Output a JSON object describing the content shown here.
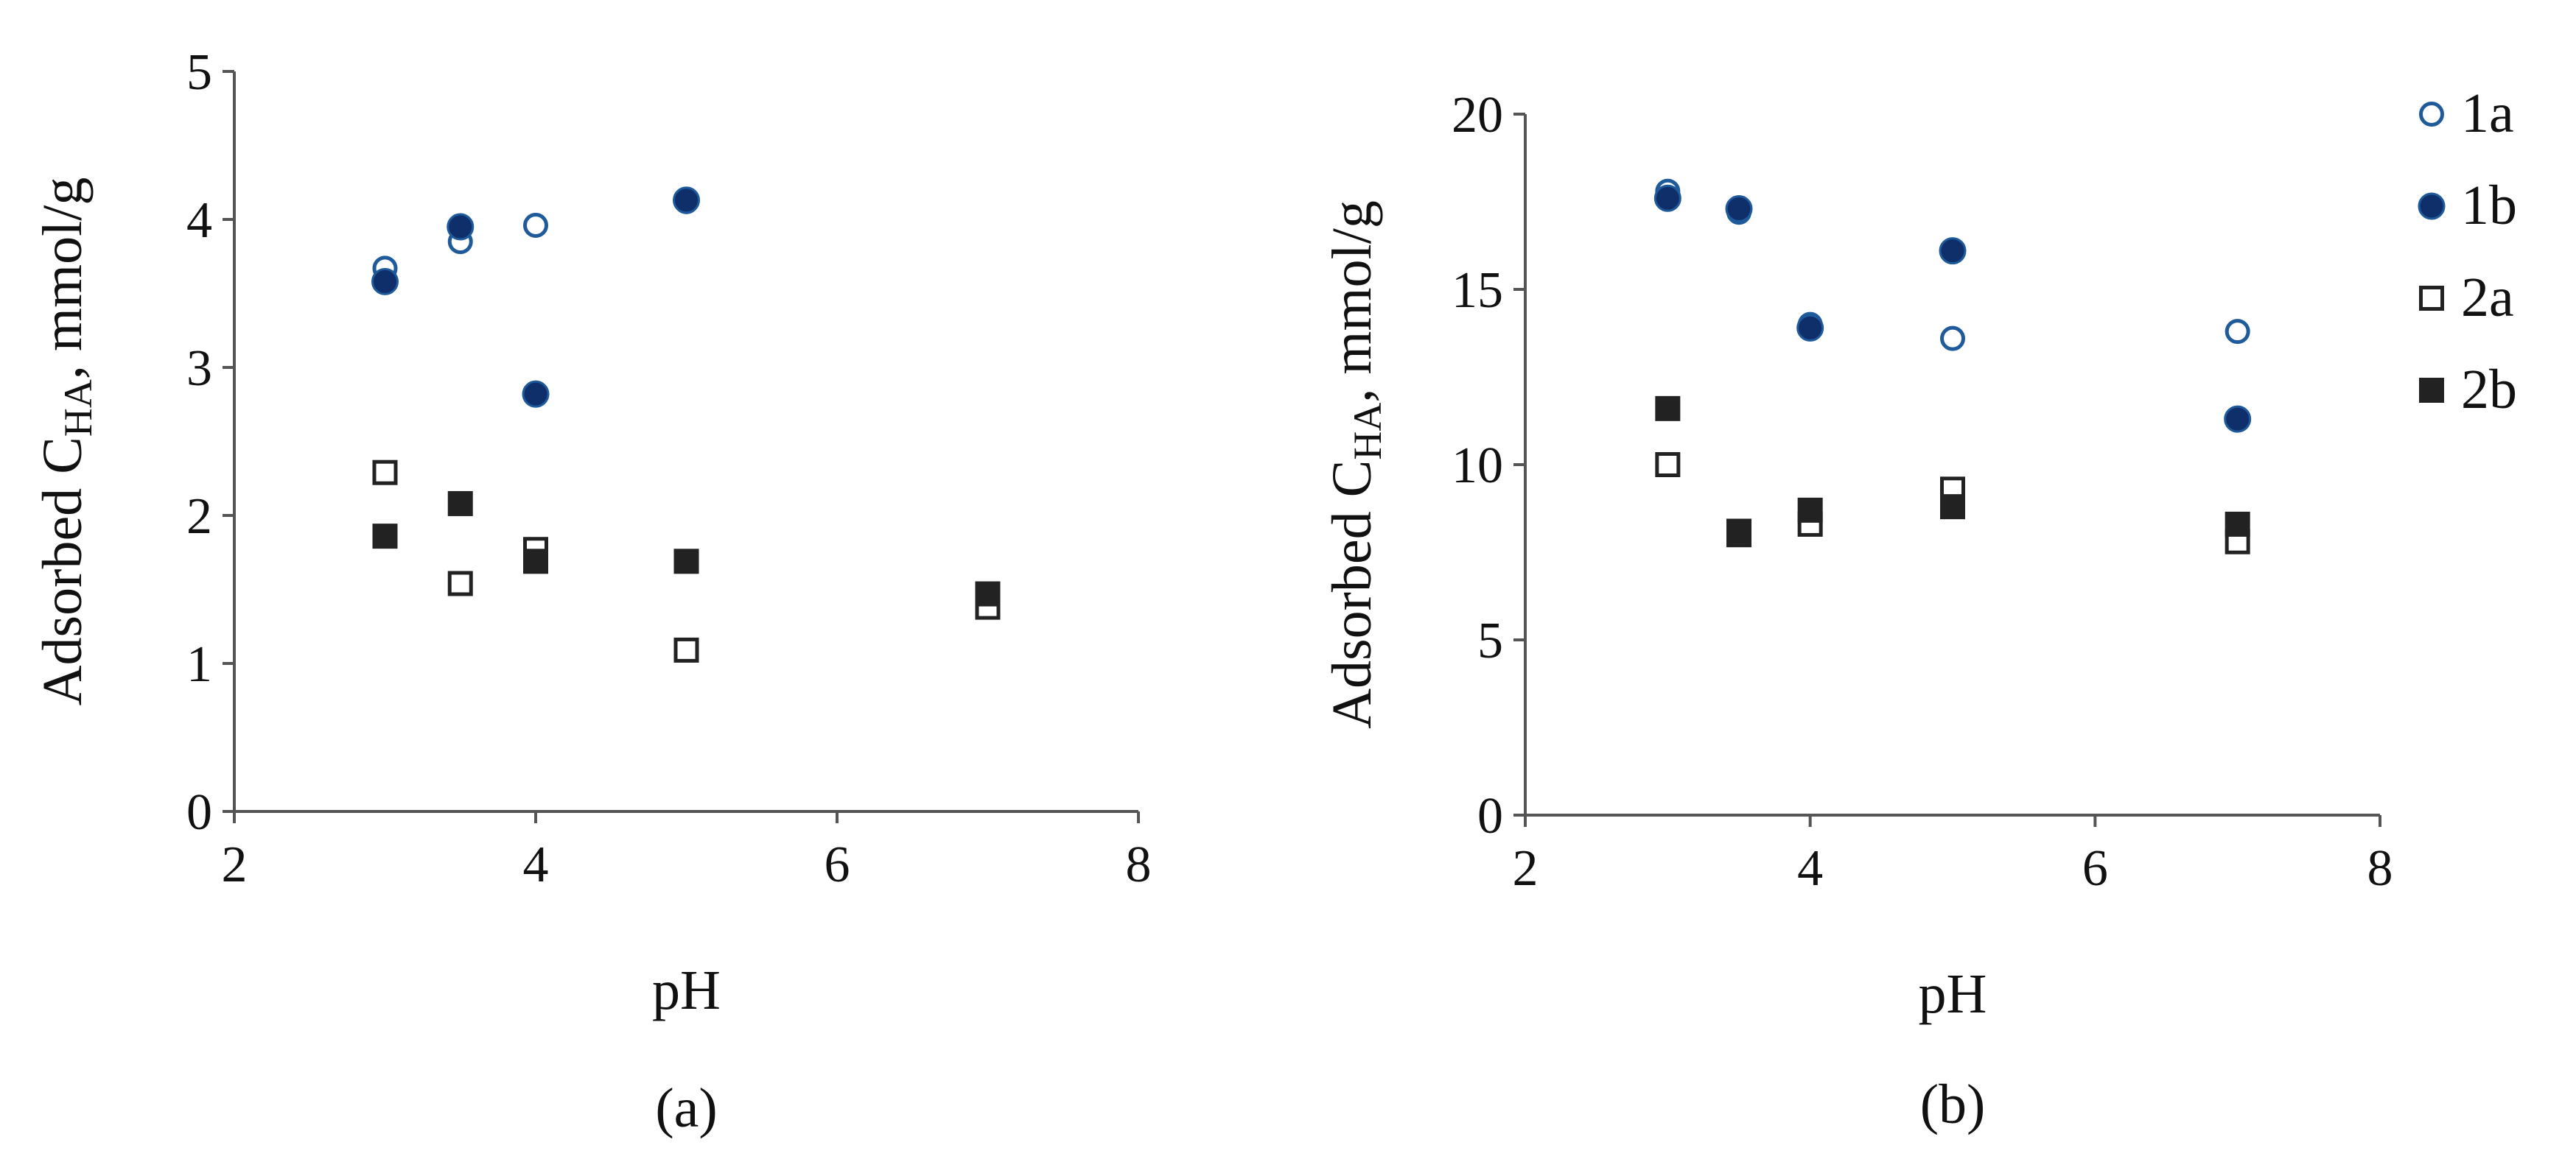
{
  "chart_data": [
    {
      "type": "scatter",
      "panel_label": "(a)",
      "xlabel": "pH",
      "ylabel": {
        "main": "Adsorbed C",
        "sub": "HA",
        "suffix": ", mmol/g"
      },
      "xlim": [
        2,
        8
      ],
      "ylim": [
        0,
        5
      ],
      "xticks": [
        "2",
        "4",
        "6",
        "8"
      ],
      "yticks": [
        "0",
        "1",
        "2",
        "3",
        "4",
        "5"
      ],
      "grid": false,
      "series": [
        {
          "name": "1a",
          "marker": "circle-open",
          "color": "#1F5A9A",
          "x": [
            3,
            3.5,
            4,
            5
          ],
          "y": [
            3.67,
            3.85,
            3.96,
            4.12
          ]
        },
        {
          "name": "1b",
          "marker": "circle-filled",
          "color": "#0F2F6B",
          "x": [
            3,
            3.5,
            4,
            5
          ],
          "y": [
            3.58,
            3.95,
            2.82,
            4.13
          ]
        },
        {
          "name": "2a",
          "marker": "square-open",
          "color": "#222222",
          "x": [
            3,
            3.5,
            4,
            5,
            7
          ],
          "y": [
            2.29,
            1.54,
            1.77,
            1.09,
            1.38
          ]
        },
        {
          "name": "2b",
          "marker": "square-filled",
          "color": "#222222",
          "x": [
            3,
            3.5,
            4,
            5,
            7
          ],
          "y": [
            1.86,
            2.08,
            1.69,
            1.69,
            1.47
          ]
        }
      ]
    },
    {
      "type": "scatter",
      "panel_label": "(b)",
      "xlabel": "pH",
      "ylabel": {
        "main": "Adsorbed C",
        "sub": "HA",
        "suffix": ", mmol/g"
      },
      "xlim": [
        2,
        8
      ],
      "ylim": [
        0,
        20
      ],
      "xticks": [
        "2",
        "4",
        "6",
        "8"
      ],
      "yticks": [
        "0",
        "5",
        "10",
        "15",
        "20"
      ],
      "grid": false,
      "legend": "right",
      "series": [
        {
          "name": "1a",
          "marker": "circle-open",
          "color": "#1F5A9A",
          "x": [
            3,
            3.5,
            4,
            5,
            7
          ],
          "y": [
            17.8,
            17.2,
            14.0,
            13.6,
            13.8
          ]
        },
        {
          "name": "1b",
          "marker": "circle-filled",
          "color": "#0F2F6B",
          "x": [
            3,
            3.5,
            4,
            5,
            7
          ],
          "y": [
            17.6,
            17.3,
            13.9,
            16.1,
            11.3
          ]
        },
        {
          "name": "2a",
          "marker": "square-open",
          "color": "#222222",
          "x": [
            3,
            3.5,
            4,
            5,
            7
          ],
          "y": [
            10.0,
            8.0,
            8.3,
            9.3,
            7.8
          ]
        },
        {
          "name": "2b",
          "marker": "square-filled",
          "color": "#222222",
          "x": [
            3,
            3.5,
            4,
            5,
            7
          ],
          "y": [
            11.6,
            8.1,
            8.7,
            8.8,
            8.3
          ]
        }
      ]
    }
  ]
}
